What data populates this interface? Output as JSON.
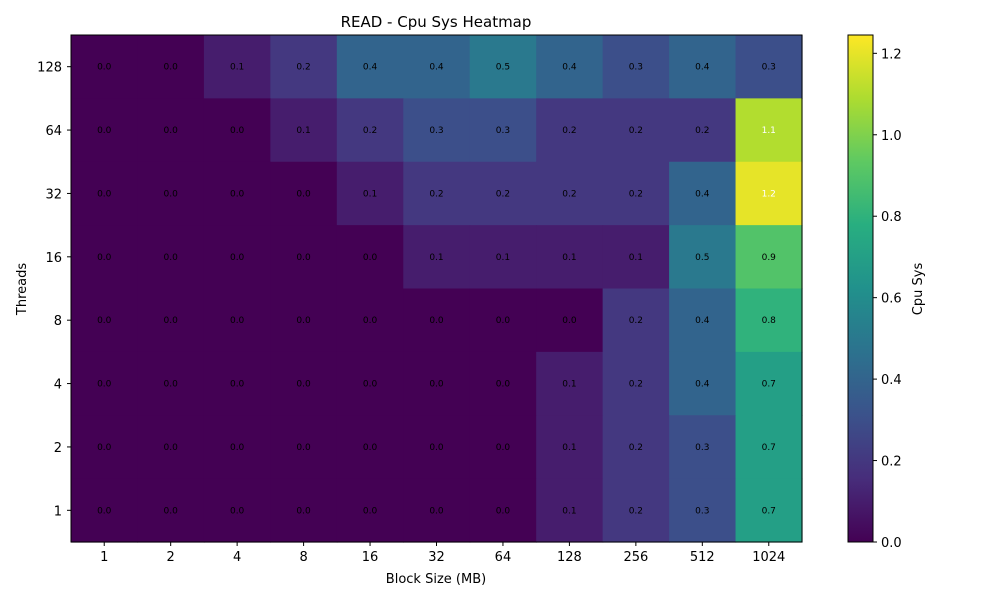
{
  "chart_data": {
    "type": "heatmap",
    "title": "READ - Cpu Sys Heatmap",
    "xlabel": "Block Size (MB)",
    "ylabel": "Threads",
    "x_categories": [
      "1",
      "2",
      "4",
      "8",
      "16",
      "32",
      "64",
      "128",
      "256",
      "512",
      "1024"
    ],
    "y_categories": [
      "128",
      "64",
      "32",
      "16",
      "8",
      "4",
      "2",
      "1"
    ],
    "values": [
      [
        0.0,
        0.0,
        0.1,
        0.2,
        0.4,
        0.4,
        0.5,
        0.4,
        0.3,
        0.4,
        0.3
      ],
      [
        0.0,
        0.0,
        0.0,
        0.1,
        0.2,
        0.3,
        0.3,
        0.2,
        0.2,
        0.2,
        1.1
      ],
      [
        0.0,
        0.0,
        0.0,
        0.0,
        0.1,
        0.2,
        0.2,
        0.2,
        0.2,
        0.4,
        1.2
      ],
      [
        0.0,
        0.0,
        0.0,
        0.0,
        0.0,
        0.1,
        0.1,
        0.1,
        0.1,
        0.5,
        0.9
      ],
      [
        0.0,
        0.0,
        0.0,
        0.0,
        0.0,
        0.0,
        0.0,
        0.0,
        0.2,
        0.4,
        0.8
      ],
      [
        0.0,
        0.0,
        0.0,
        0.0,
        0.0,
        0.0,
        0.0,
        0.1,
        0.2,
        0.4,
        0.7
      ],
      [
        0.0,
        0.0,
        0.0,
        0.0,
        0.0,
        0.0,
        0.0,
        0.1,
        0.2,
        0.3,
        0.7
      ],
      [
        0.0,
        0.0,
        0.0,
        0.0,
        0.0,
        0.0,
        0.0,
        0.1,
        0.2,
        0.3,
        0.7
      ]
    ],
    "colormap": "viridis",
    "colorbar": {
      "label": "Cpu Sys",
      "range": [
        0.0,
        1.245
      ],
      "ticks": [
        "0.0",
        "0.2",
        "0.4",
        "0.6",
        "0.8",
        "1.0",
        "1.2"
      ]
    },
    "grid": false
  }
}
